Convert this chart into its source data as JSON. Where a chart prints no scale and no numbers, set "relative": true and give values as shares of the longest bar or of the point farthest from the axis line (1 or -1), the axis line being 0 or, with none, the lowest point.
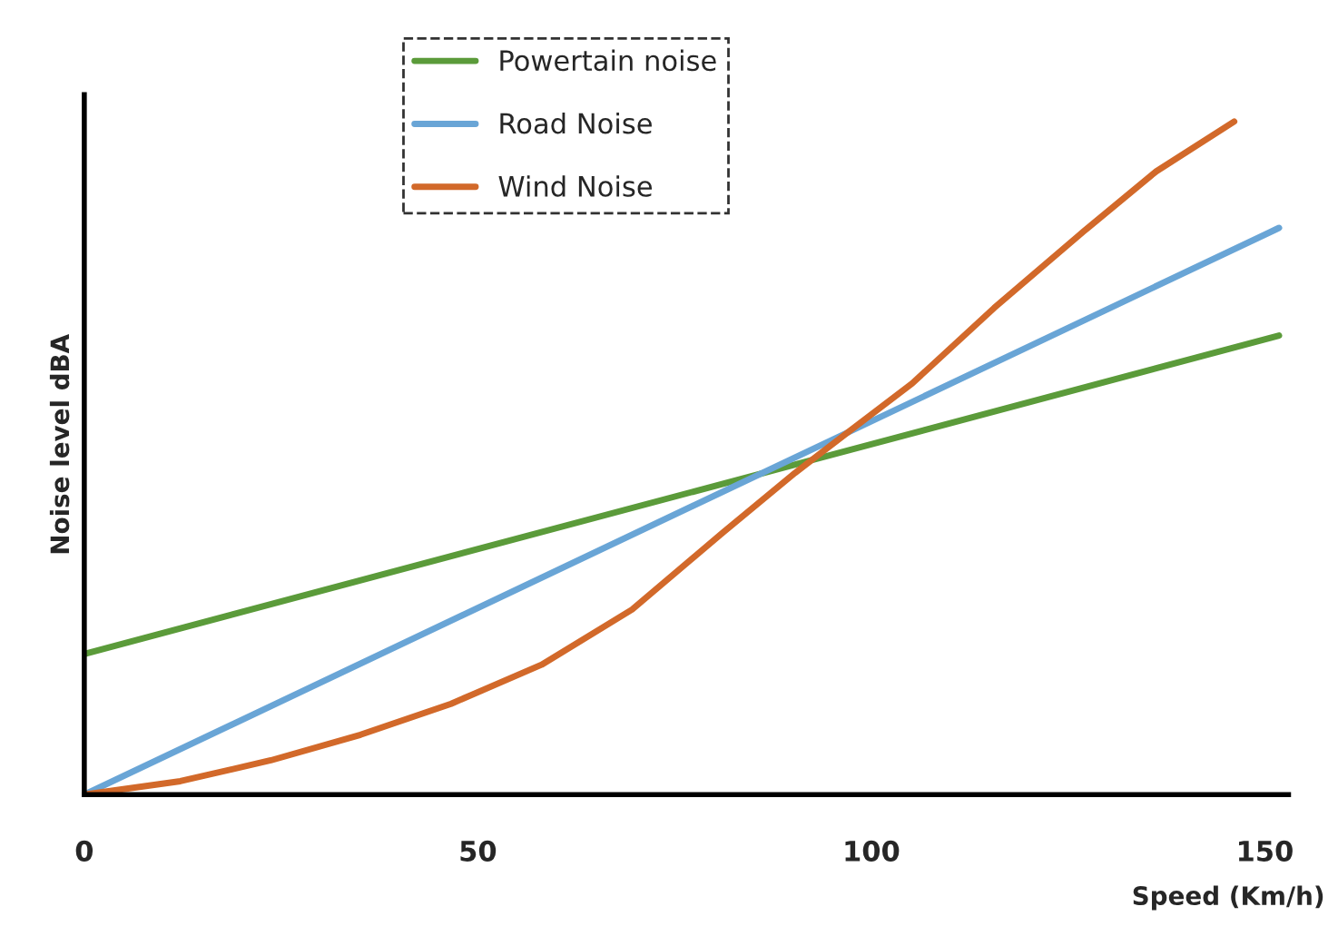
{
  "chart_data": {
    "type": "line",
    "relative": true,
    "xlabel": "Speed (Km/h)",
    "ylabel": "Noise level dBA",
    "xlim": [
      0,
      153
    ],
    "xticks": [
      0,
      50,
      100,
      150
    ],
    "legend": "top",
    "grid": false,
    "series": [
      {
        "name": "Powertain noise",
        "color": "#5b9b3a",
        "x": [
          0,
          151.8
        ],
        "values": [
          0.209,
          0.682
        ]
      },
      {
        "name": "Road Noise",
        "color": "#69a5d6",
        "x": [
          0,
          151.8
        ],
        "values": [
          0,
          0.842
        ]
      },
      {
        "name": "Wind Noise",
        "color": "#d2692a",
        "x": [
          0,
          12.2,
          23.7,
          35.1,
          46.6,
          58.1,
          69.6,
          81.1,
          90.3,
          97.2,
          105.2,
          115.6,
          127.0,
          136.2,
          146.1
        ],
        "values": [
          0,
          0.02,
          0.051,
          0.089,
          0.135,
          0.193,
          0.275,
          0.389,
          0.478,
          0.54,
          0.611,
          0.723,
          0.837,
          0.926,
          1.0
        ]
      }
    ]
  }
}
